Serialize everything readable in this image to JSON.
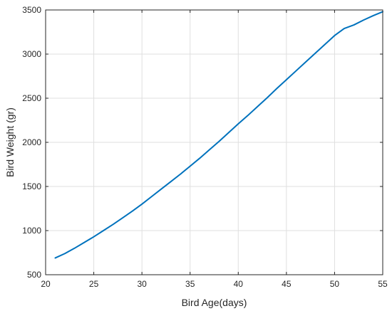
{
  "chart_data": {
    "type": "line",
    "title": "",
    "xlabel": "Bird Age(days)",
    "ylabel": "Bird Weight (gr)",
    "xlim": [
      20,
      55
    ],
    "ylim": [
      500,
      3500
    ],
    "xticks": [
      20,
      25,
      30,
      35,
      40,
      45,
      50,
      55
    ],
    "yticks": [
      500,
      1000,
      1500,
      2000,
      2500,
      3000,
      3500
    ],
    "grid": true,
    "series": [
      {
        "color": "#0072BD",
        "x": [
          21,
          22,
          23,
          24,
          25,
          26,
          27,
          28,
          29,
          30,
          31,
          32,
          33,
          34,
          35,
          36,
          37,
          38,
          39,
          40,
          41,
          42,
          43,
          44,
          45,
          46,
          47,
          48,
          49,
          50,
          51,
          52,
          53,
          54,
          55
        ],
        "y": [
          690,
          740,
          800,
          865,
          930,
          1000,
          1070,
          1145,
          1220,
          1300,
          1385,
          1470,
          1555,
          1640,
          1730,
          1820,
          1915,
          2010,
          2110,
          2210,
          2305,
          2405,
          2505,
          2610,
          2710,
          2810,
          2910,
          3010,
          3110,
          3210,
          3290,
          3330,
          3385,
          3435,
          3480
        ]
      }
    ]
  }
}
